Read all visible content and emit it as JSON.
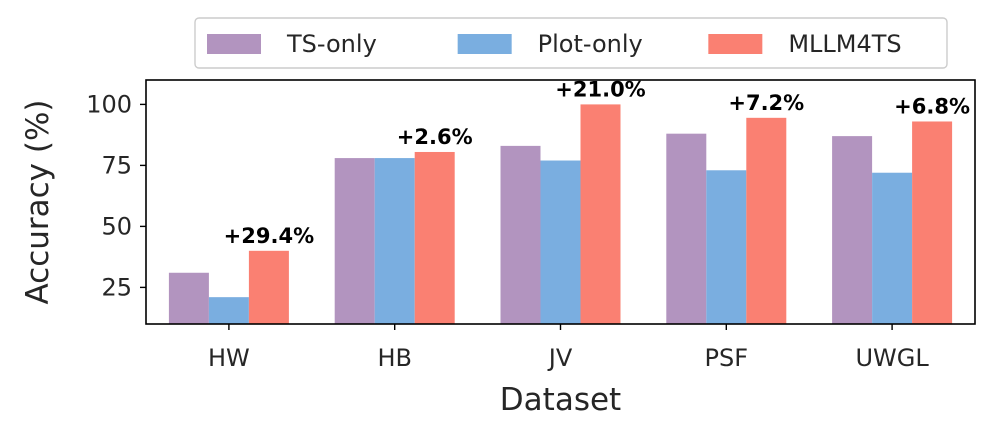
{
  "chart_data": {
    "type": "bar",
    "categories": [
      "HW",
      "HB",
      "JV",
      "PSF",
      "UWGL"
    ],
    "series": [
      {
        "name": "TS-only",
        "color": "#b294bf",
        "values": [
          31,
          78,
          83,
          88,
          87
        ]
      },
      {
        "name": "Plot-only",
        "color": "#7aaee0",
        "values": [
          21,
          78,
          77,
          73,
          72
        ]
      },
      {
        "name": "MLLM4TS",
        "color": "#fa8072",
        "values": [
          40,
          80.5,
          100,
          94.5,
          93
        ]
      }
    ],
    "annotations": [
      "+29.4%",
      "+2.6%",
      "+21.0%",
      "+7.2%",
      "+6.8%"
    ],
    "xlabel": "Dataset",
    "ylabel": "Accuracy (%)",
    "yticks": [
      25,
      50,
      75,
      100
    ],
    "ylim": [
      10,
      110
    ],
    "grid": false,
    "legend_position": "top-center"
  }
}
